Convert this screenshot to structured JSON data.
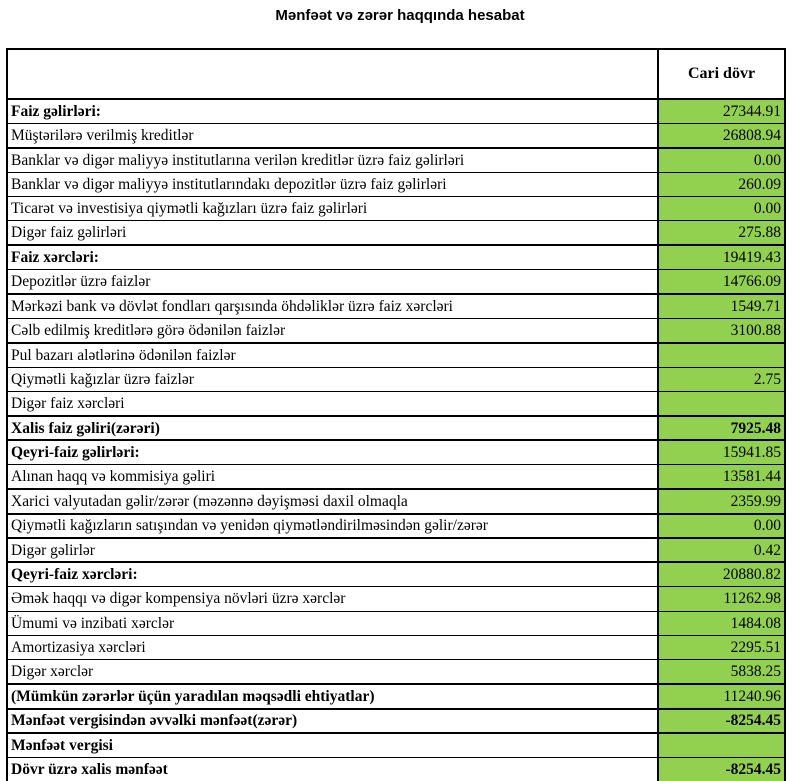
{
  "title": "Mənfəət və zərər haqqında hesabat",
  "table": {
    "value_column_header": "Cari dövr",
    "value_bg_color": "#92d050",
    "rows": [
      {
        "label": "Faiz gəlirləri:",
        "value": "27344.91",
        "bold": true,
        "value_bold": false,
        "thick": false
      },
      {
        "label": "Müştərilərə verilmiş kreditlər",
        "value": "26808.94",
        "bold": false,
        "value_bold": false,
        "thick": true
      },
      {
        "label": "Banklar və digər maliyyə institutlarına verilən kreditlər üzrə faiz gəlirləri",
        "value": "0.00",
        "bold": false,
        "value_bold": false,
        "thick": false
      },
      {
        "label": "Banklar və digər maliyyə institutlarındakı depozitlər üzrə faiz gəlirləri",
        "value": "260.09",
        "bold": false,
        "value_bold": false,
        "thick": false
      },
      {
        "label": "Ticarət və investisiya qiymətli kağızları üzrə faiz gəlirləri",
        "value": "0.00",
        "bold": false,
        "value_bold": false,
        "thick": false
      },
      {
        "label": "Digər faiz gəlirləri",
        "value": "275.88",
        "bold": false,
        "value_bold": false,
        "thick": true
      },
      {
        "label": "Faiz xərcləri:",
        "value": "19419.43",
        "bold": true,
        "value_bold": false,
        "thick": false
      },
      {
        "label": "Depozitlər üzrə faizlər",
        "value": "14766.09",
        "bold": false,
        "value_bold": false,
        "thick": true
      },
      {
        "label": "Mərkəzi bank və dövlət fondları qarşısında öhdəliklər üzrə faiz xərcləri",
        "value": "1549.71",
        "bold": false,
        "value_bold": false,
        "thick": false
      },
      {
        "label": "Cəlb edilmiş kreditlərə görə ödənilən faizlər",
        "value": "3100.88",
        "bold": false,
        "value_bold": false,
        "thick": true
      },
      {
        "label": "Pul bazarı alətlərinə ödənilən faizlər",
        "value": "",
        "bold": false,
        "value_bold": false,
        "thick": false
      },
      {
        "label": "Qiymətli kağızlar üzrə faizlər",
        "value": "2.75",
        "bold": false,
        "value_bold": false,
        "thick": false
      },
      {
        "label": "Digər faiz xərcləri",
        "value": "",
        "bold": false,
        "value_bold": false,
        "thick": true
      },
      {
        "label": "Xalis faiz gəliri(zərəri)",
        "value": "7925.48",
        "bold": true,
        "value_bold": true,
        "thick": true
      },
      {
        "label": "Qeyri-faiz gəlirləri:",
        "value": "15941.85",
        "bold": true,
        "value_bold": false,
        "thick": false
      },
      {
        "label": "Alınan haqq və kommisiya gəliri",
        "value": "13581.44",
        "bold": false,
        "value_bold": false,
        "thick": true
      },
      {
        "label": "Xarici valyutadan gəlir/zərər (məzənnə dəyişməsi daxil olmaqla",
        "value": "2359.99",
        "bold": false,
        "value_bold": false,
        "thick": true
      },
      {
        "label": "Qiymətli kağızların satışından və yenidən qiymətləndirilməsindən gəlir/zərər",
        "value": "0.00",
        "bold": false,
        "value_bold": false,
        "thick": true
      },
      {
        "label": "Digər gəlirlər",
        "value": "0.42",
        "bold": false,
        "value_bold": false,
        "thick": true
      },
      {
        "label": "Qeyri-faiz xərcləri:",
        "value": "20880.82",
        "bold": true,
        "value_bold": false,
        "thick": false
      },
      {
        "label": "Əmək haqqı və digər kompensiya növləri üzrə xərclər",
        "value": "11262.98",
        "bold": false,
        "value_bold": false,
        "thick": false
      },
      {
        "label": "Ümumi və inzibati xərclər",
        "value": "1484.08",
        "bold": false,
        "value_bold": false,
        "thick": false
      },
      {
        "label": "Amortizasiya xərcləri",
        "value": "2295.51",
        "bold": false,
        "value_bold": false,
        "thick": false
      },
      {
        "label": "Digər xərclər",
        "value": "5838.25",
        "bold": false,
        "value_bold": false,
        "thick": true
      },
      {
        "label": "(Mümkün zərərlər üçün yaradılan məqsədli ehtiyatlar)",
        "value": "11240.96",
        "bold": true,
        "value_bold": false,
        "thick": true
      },
      {
        "label": "Mənfəət vergisindən əvvəlki mənfəət(zərər)",
        "value": "-8254.45",
        "bold": true,
        "value_bold": true,
        "thick": true
      },
      {
        "label": "Mənfəət vergisi",
        "value": "",
        "bold": true,
        "value_bold": false,
        "thick": false
      },
      {
        "label": "Dövr üzrə xalis mənfəət",
        "value": "-8254.45",
        "bold": true,
        "value_bold": true,
        "thick": false
      }
    ]
  }
}
